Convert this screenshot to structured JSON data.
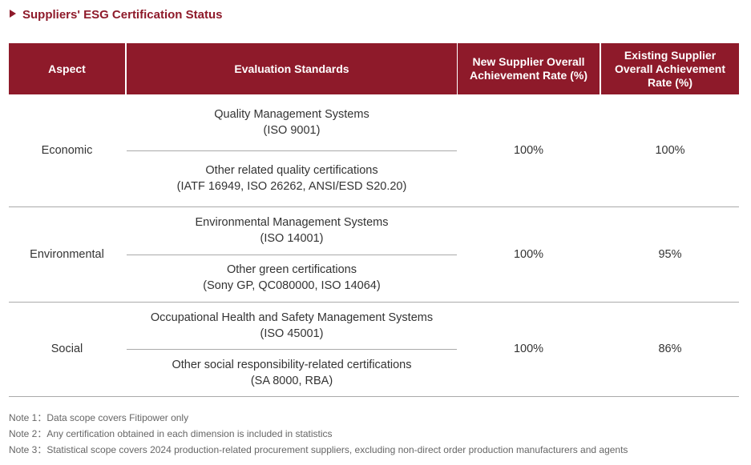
{
  "header": {
    "title": "Suppliers' ESG Certification Status"
  },
  "table": {
    "columns": [
      "Aspect",
      "Evaluation Standards",
      "New Supplier Overall Achievement Rate (%)",
      "Existing Supplier Overall Achievement Rate (%)"
    ],
    "rows": [
      {
        "aspect": "Economic",
        "standards": [
          {
            "name": "Quality Management Systems",
            "code": "(ISO 9001)"
          },
          {
            "name": "Other related quality certifications",
            "code": "(IATF 16949, ISO 26262, ANSI/ESD S20.20)"
          }
        ],
        "new_rate": "100%",
        "existing_rate": "100%"
      },
      {
        "aspect": "Environmental",
        "standards": [
          {
            "name": "Environmental Management Systems",
            "code": "(ISO 14001)"
          },
          {
            "name": "Other green certifications",
            "code": "(Sony GP, QC080000, ISO 14064)"
          }
        ],
        "new_rate": "100%",
        "existing_rate": "95%"
      },
      {
        "aspect": "Social",
        "standards": [
          {
            "name": "Occupational Health and Safety Management Systems",
            "code": "(ISO 45001)"
          },
          {
            "name": "Other social responsibility-related certifications",
            "code": "(SA 8000, RBA)"
          }
        ],
        "new_rate": "100%",
        "existing_rate": "86%"
      }
    ]
  },
  "notes": [
    "Note 1：Data scope covers Fitipower only",
    "Note 2：Any certification obtained in each dimension is included in statistics",
    "Note 3：Statistical scope covers 2024 production-related procurement suppliers, excluding non-direct order production manufacturers and agents"
  ]
}
